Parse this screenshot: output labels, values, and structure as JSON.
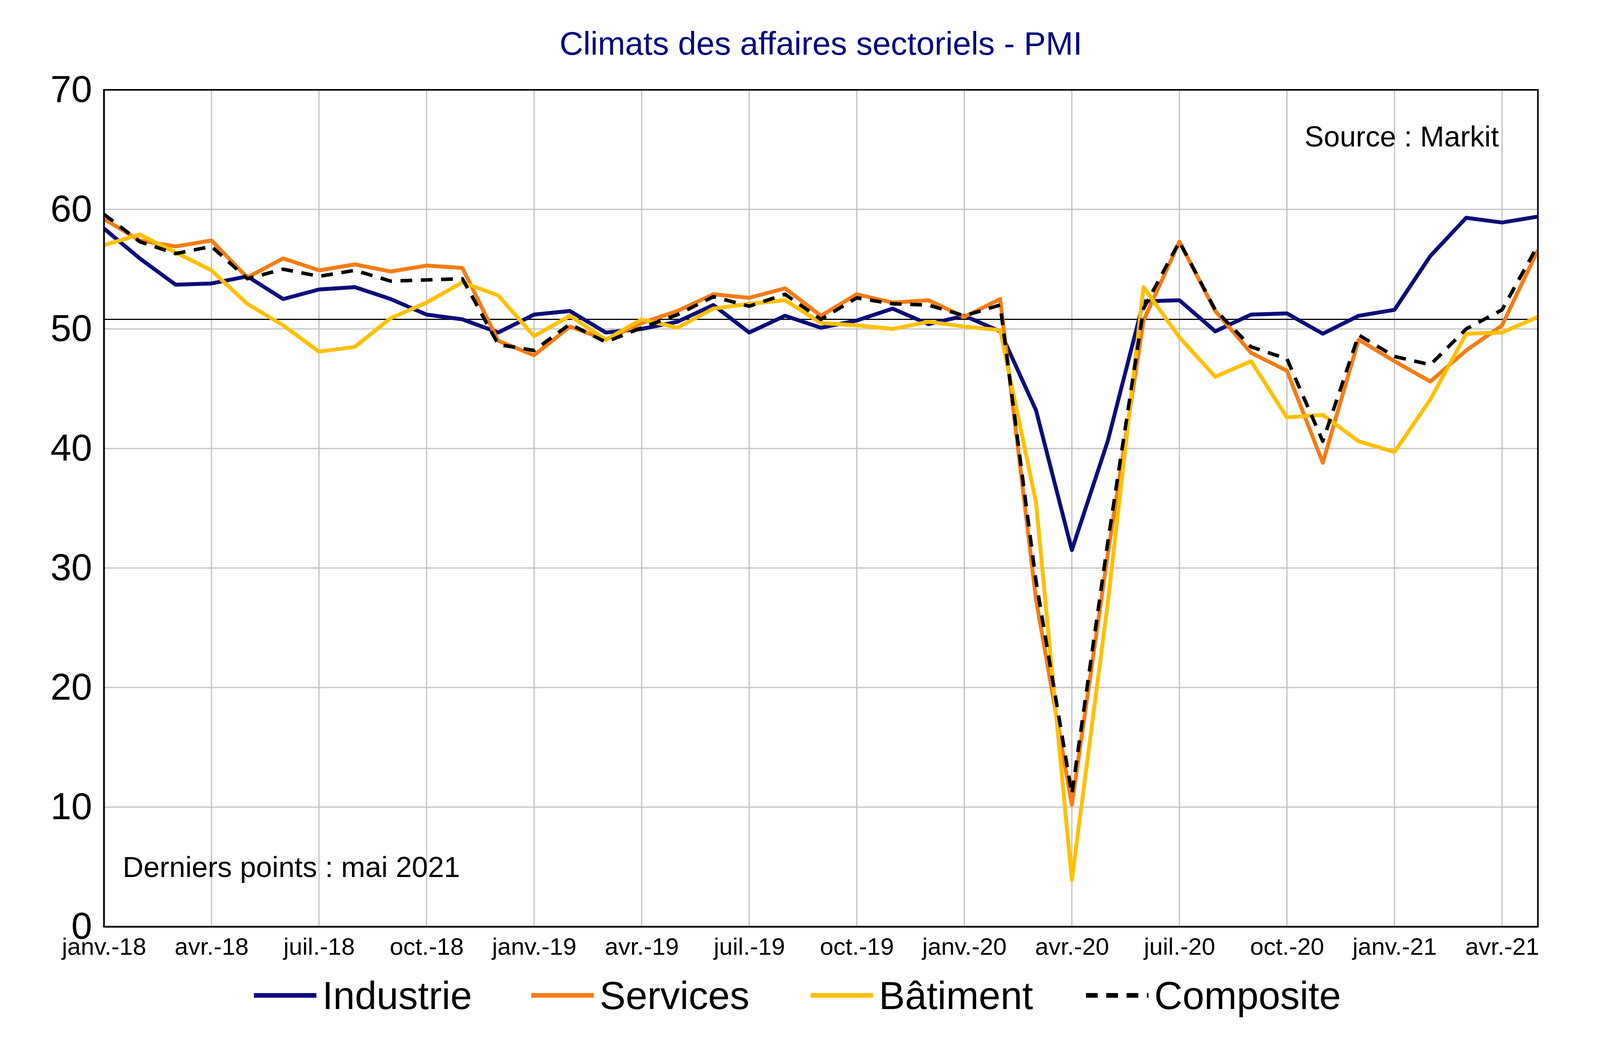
{
  "chart_data": {
    "type": "line",
    "title": "Climats des affaires sectoriels  - PMI",
    "annotations": [
      "Source : Markit",
      "Derniers points : mai 2021"
    ],
    "categories": [
      "janv.-18",
      null,
      null,
      "avr.-18",
      null,
      null,
      "juil.-18",
      null,
      null,
      "oct.-18",
      null,
      null,
      "janv.-19",
      null,
      null,
      "avr.-19",
      null,
      null,
      "juil.-19",
      null,
      null,
      "oct.-19",
      null,
      null,
      "janv.-20",
      null,
      null,
      "avr.-20",
      null,
      null,
      "juil.-20",
      null,
      null,
      "oct.-20",
      null,
      null,
      "janv.-21",
      null,
      null,
      "avr.-21",
      null
    ],
    "series": [
      {
        "name": "Industrie",
        "color": "#0c0c7a",
        "line_style": "solid",
        "values": [
          58.4,
          55.9,
          53.7,
          53.8,
          54.4,
          52.5,
          53.3,
          53.5,
          52.5,
          51.2,
          50.8,
          49.7,
          51.2,
          51.5,
          49.7,
          50.0,
          50.6,
          52.0,
          49.7,
          51.1,
          50.1,
          50.7,
          51.7,
          50.4,
          51.1,
          49.8,
          43.2,
          31.5,
          40.6,
          52.3,
          52.4,
          49.8,
          51.2,
          51.3,
          49.6,
          51.1,
          51.6,
          56.1,
          59.3,
          58.9,
          59.4
        ]
      },
      {
        "name": "Services",
        "color": "#f57c14",
        "line_style": "solid",
        "values": [
          59.2,
          57.4,
          56.9,
          57.4,
          54.3,
          55.9,
          54.9,
          55.4,
          54.8,
          55.3,
          55.1,
          49.0,
          47.8,
          50.2,
          49.1,
          50.5,
          51.5,
          52.9,
          52.6,
          53.4,
          51.1,
          52.9,
          52.2,
          52.4,
          51.0,
          52.5,
          27.4,
          10.2,
          31.1,
          50.7,
          57.3,
          51.5,
          48.0,
          46.5,
          38.8,
          49.1,
          47.3,
          45.6,
          48.2,
          50.3,
          56.6
        ]
      },
      {
        "name": "Bâtiment",
        "color": "#ffc000",
        "line_style": "solid",
        "values": [
          57.0,
          57.9,
          56.4,
          54.9,
          52.1,
          50.3,
          48.1,
          48.5,
          50.9,
          52.2,
          53.9,
          52.8,
          49.4,
          51.1,
          49.1,
          50.8,
          50.1,
          51.7,
          52.1,
          52.4,
          50.5,
          50.3,
          50.0,
          50.6,
          50.2,
          49.9,
          35.5,
          3.9,
          27.0,
          53.5,
          49.3,
          46.0,
          47.3,
          42.6,
          42.8,
          40.6,
          39.7,
          44.1,
          49.6,
          49.7,
          51.0
        ]
      },
      {
        "name": "Composite",
        "color": "#000000",
        "line_style": "dashed",
        "values": [
          59.6,
          57.3,
          56.3,
          56.9,
          54.2,
          55.0,
          54.4,
          54.9,
          54.0,
          54.1,
          54.2,
          48.7,
          48.2,
          50.4,
          48.9,
          50.1,
          51.2,
          52.7,
          51.9,
          52.9,
          50.8,
          52.6,
          52.1,
          52.0,
          51.1,
          52.0,
          28.9,
          11.1,
          32.1,
          51.7,
          57.3,
          51.6,
          48.5,
          47.5,
          40.6,
          49.5,
          47.7,
          47.0,
          50.0,
          51.6,
          57.0
        ]
      }
    ],
    "reference_line": 50.8,
    "ylim": [
      0,
      70
    ],
    "yticks": [
      0,
      10,
      20,
      30,
      40,
      50,
      60,
      70
    ],
    "grid": true,
    "legend": "bottom"
  }
}
